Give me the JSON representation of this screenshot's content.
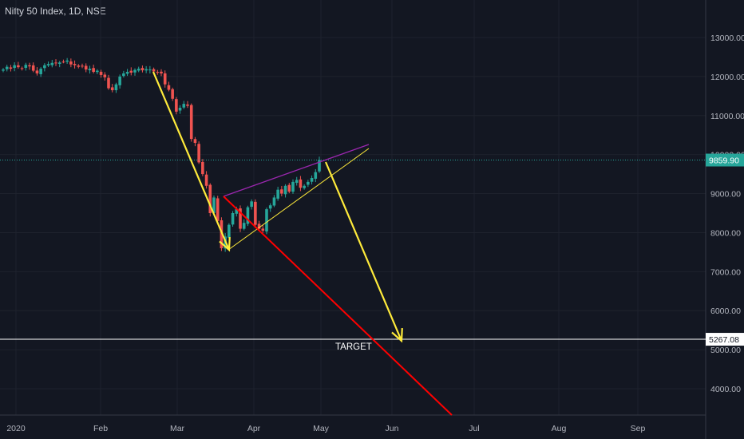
{
  "title": "Nifty 50 Index, 1D, NSE",
  "chart_data": {
    "type": "candlestick",
    "symbol": "Nifty 50 Index",
    "interval": "1D",
    "exchange": "NSE",
    "y_ticks": [
      13000,
      12000,
      11000,
      10000,
      9000,
      8000,
      7000,
      6000,
      5000,
      4000
    ],
    "y_tick_labels": [
      "13000.00",
      "12000.00",
      "11000.00",
      "10000.00",
      "9000.00",
      "8000.00",
      "7000.00",
      "6000.00",
      "5000.00",
      "4000.00"
    ],
    "x_ticks": [
      "2020",
      "Feb",
      "Mar",
      "Apr",
      "May",
      "Jun",
      "Jul",
      "Aug",
      "Sep"
    ],
    "last_price": 9859.9,
    "last_price_label": "9859.90",
    "target_price": 5267.08,
    "target_price_label": "5267.08",
    "target_label": "TARGET",
    "colors": {
      "up": "#26a69a",
      "down": "#ef5350",
      "background": "#131722",
      "yellow": "#ffeb3b",
      "red": "#ff0000",
      "magenta": "#9c27b0"
    },
    "closes": [
      12180,
      12250,
      12200,
      12290,
      12240,
      12210,
      12300,
      12260,
      12150,
      12080,
      12200,
      12290,
      12320,
      12350,
      12340,
      12360,
      12380,
      12410,
      12310,
      12290,
      12250,
      12270,
      12180,
      12200,
      12120,
      12150,
      12040,
      11980,
      11700,
      11650,
      11800,
      12000,
      12080,
      12120,
      12100,
      12170,
      12200,
      12160,
      12190,
      12180,
      12130,
      12100,
      12080,
      11800,
      11660,
      11430,
      11100,
      11200,
      11300,
      11250,
      10400,
      10300,
      9800,
      9500,
      9200,
      8500,
      8900,
      8300,
      7600,
      7900,
      8200,
      8500,
      8600,
      8100,
      8250,
      8650,
      8800,
      8200,
      8100,
      8050,
      8600,
      8700,
      8900,
      9100,
      9000,
      9200,
      9050,
      9300,
      9350,
      9150,
      9200,
      9300,
      9400,
      9550,
      9860
    ]
  }
}
